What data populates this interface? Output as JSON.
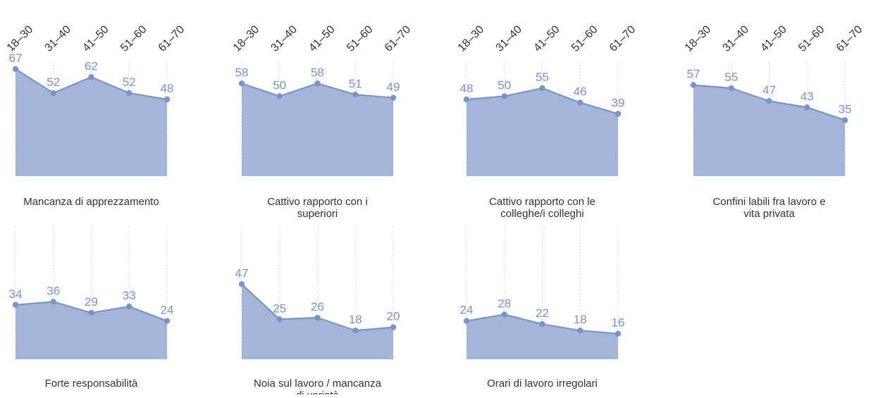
{
  "colors": {
    "area_fill": "#a3b5d8",
    "line": "#7a93c8",
    "point": "#7a93c8",
    "value_label": "#7a93c8",
    "tick_label": "#333333",
    "caption": "#333333",
    "grid": "#c8c8c8"
  },
  "chart_data": [
    {
      "type": "area",
      "caption": "Mancanza di apprezzamento",
      "categories": [
        "18–30",
        "31–40",
        "41–50",
        "51–60",
        "61–70"
      ],
      "values": [
        67,
        52,
        62,
        52,
        48
      ],
      "ylim": [
        0,
        67
      ],
      "grid": true,
      "show_categories": true
    },
    {
      "type": "area",
      "caption": "Cattivo rapporto con i superiori",
      "categories": [
        "18–30",
        "31–40",
        "41–50",
        "51–60",
        "61–70"
      ],
      "values": [
        58,
        50,
        58,
        51,
        49
      ],
      "ylim": [
        0,
        67
      ],
      "grid": true,
      "show_categories": true
    },
    {
      "type": "area",
      "caption": "Cattivo rapporto con le colleghe/i colleghi",
      "categories": [
        "18–30",
        "31–40",
        "41–50",
        "51–60",
        "61–70"
      ],
      "values": [
        48,
        50,
        55,
        46,
        39
      ],
      "ylim": [
        0,
        67
      ],
      "grid": true,
      "show_categories": true
    },
    {
      "type": "area",
      "caption": "Confini labili fra lavoro e vita privata",
      "categories": [
        "18–30",
        "31–40",
        "41–50",
        "51–60",
        "61–70"
      ],
      "values": [
        57,
        55,
        47,
        43,
        35
      ],
      "ylim": [
        0,
        67
      ],
      "grid": true,
      "show_categories": true
    },
    {
      "type": "area",
      "caption": "Forte responsabilità",
      "categories": [
        "18–30",
        "31–40",
        "41–50",
        "51–60",
        "61–70"
      ],
      "values": [
        34,
        36,
        29,
        33,
        24
      ],
      "ylim": [
        0,
        67
      ],
      "grid": true,
      "show_categories": false
    },
    {
      "type": "area",
      "caption": "Noia sul lavoro / mancanza di varietà",
      "categories": [
        "18–30",
        "31–40",
        "41–50",
        "51–60",
        "61–70"
      ],
      "values": [
        47,
        25,
        26,
        18,
        20
      ],
      "ylim": [
        0,
        67
      ],
      "grid": true,
      "show_categories": false
    },
    {
      "type": "area",
      "caption": "Orari di lavoro irregolari",
      "categories": [
        "18–30",
        "31–40",
        "41–50",
        "51–60",
        "61–70"
      ],
      "values": [
        24,
        28,
        22,
        18,
        16
      ],
      "ylim": [
        0,
        67
      ],
      "grid": true,
      "show_categories": false
    }
  ]
}
